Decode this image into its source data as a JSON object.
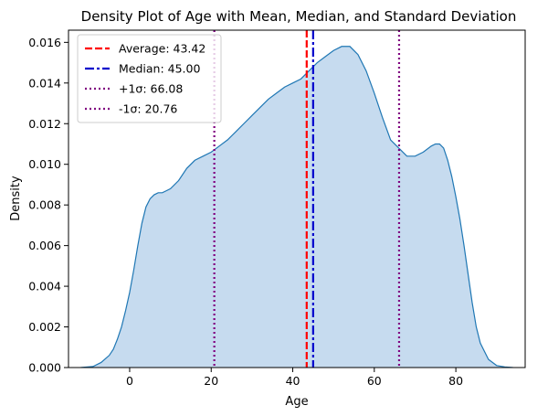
{
  "chart_data": {
    "type": "area",
    "title": "Density Plot of Age with Mean, Median, and Standard Deviation",
    "xlabel": "Age",
    "ylabel": "Density",
    "xlim": [
      -15,
      97
    ],
    "ylim": [
      0,
      0.0166
    ],
    "xticks": [
      0,
      20,
      40,
      60,
      80
    ],
    "yticks": [
      0.0,
      0.002,
      0.004,
      0.006,
      0.008,
      0.01,
      0.012,
      0.014,
      0.016
    ],
    "ytick_labels": [
      "0.000",
      "0.002",
      "0.004",
      "0.006",
      "0.008",
      "0.010",
      "0.012",
      "0.014",
      "0.016"
    ],
    "grid": false,
    "legend_position": "top-left",
    "series": [
      {
        "kind": "density",
        "color": "#1f77b4",
        "fill": "#c6dbef",
        "x": [
          -12,
          -9,
          -7,
          -5,
          -4,
          -3,
          -2,
          -1,
          0,
          1,
          2,
          3,
          4,
          5,
          6,
          7,
          8,
          9,
          10,
          12,
          14,
          16,
          18,
          20,
          22,
          24,
          26,
          28,
          30,
          32,
          34,
          36,
          38,
          40,
          42,
          44,
          46,
          48,
          50,
          52,
          54,
          56,
          58,
          60,
          62,
          64,
          66,
          68,
          70,
          72,
          74,
          75,
          76,
          77,
          78,
          79,
          80,
          81,
          82,
          83,
          84,
          85,
          86,
          88,
          90,
          92,
          94
        ],
        "y": [
          0.0,
          5e-05,
          0.00025,
          0.0006,
          0.0009,
          0.0014,
          0.002,
          0.0028,
          0.0037,
          0.0048,
          0.006,
          0.0071,
          0.0079,
          0.0083,
          0.0085,
          0.0086,
          0.0086,
          0.0087,
          0.0088,
          0.0092,
          0.0098,
          0.0102,
          0.0104,
          0.0106,
          0.0109,
          0.0112,
          0.0116,
          0.012,
          0.0124,
          0.0128,
          0.0132,
          0.0135,
          0.0138,
          0.014,
          0.0142,
          0.0146,
          0.015,
          0.0153,
          0.0156,
          0.0158,
          0.0158,
          0.0154,
          0.0146,
          0.0135,
          0.0123,
          0.0112,
          0.0108,
          0.0104,
          0.0104,
          0.0106,
          0.0109,
          0.011,
          0.011,
          0.0108,
          0.0102,
          0.0094,
          0.0084,
          0.0073,
          0.006,
          0.0046,
          0.0032,
          0.002,
          0.0012,
          0.0004,
          0.0001,
          3e-05,
          0.0
        ]
      }
    ],
    "reference_lines": [
      {
        "label": "Average: 43.42",
        "x": 43.42,
        "color": "#ff0000",
        "style": "dashed"
      },
      {
        "label": "Median: 45.00",
        "x": 45.0,
        "color": "#0000cc",
        "style": "dashdot"
      },
      {
        "label": "+1σ: 66.08",
        "x": 66.08,
        "color": "#800080",
        "style": "dotted"
      },
      {
        "label": "-1σ: 20.76",
        "x": 20.76,
        "color": "#800080",
        "style": "dotted"
      }
    ]
  }
}
